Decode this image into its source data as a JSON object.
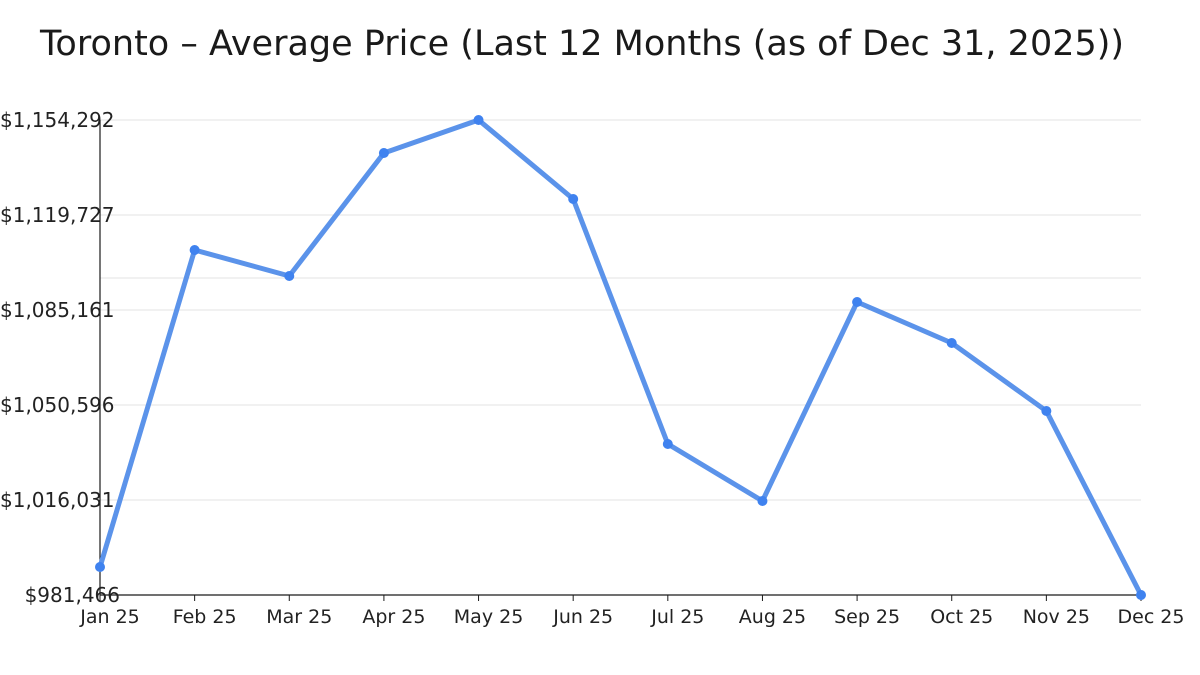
{
  "title": "Toronto – Average Price (Last 12 Months (as of Dec 31, 2025))",
  "colors": {
    "line": "#5b93ea",
    "marker": "#3f82ef",
    "grid": "#e3e3e3",
    "axis": "#1a1a1a"
  },
  "chart_data": {
    "type": "line",
    "title": "Toronto – Average Price (Last 12 Months (as of Dec 31, 2025))",
    "xlabel": "",
    "ylabel": "",
    "categories": [
      "Jan 25",
      "Feb 25",
      "Mar 25",
      "Apr 25",
      "May 25",
      "Jun 25",
      "Jul 25",
      "Aug 25",
      "Sep 25",
      "Oct 25",
      "Nov 25",
      "Dec 25"
    ],
    "series": [
      {
        "name": "Average Price",
        "values": [
          991654,
          1106994,
          1097534,
          1142288,
          1154292,
          1125551,
          1036408,
          1015668,
          1088074,
          1073156,
          1048414,
          981466
        ]
      }
    ],
    "y_ticks": [
      981466,
      1016031,
      1050596,
      1085161,
      1119727,
      1154292
    ],
    "y_tick_labels": [
      "$981,466",
      "$1,016,031",
      "$1,050,596",
      "$1,085,161",
      "$1,119,727",
      "$1,154,292"
    ],
    "ylim": [
      981466,
      1154292
    ],
    "grid": true,
    "legend": "none"
  }
}
